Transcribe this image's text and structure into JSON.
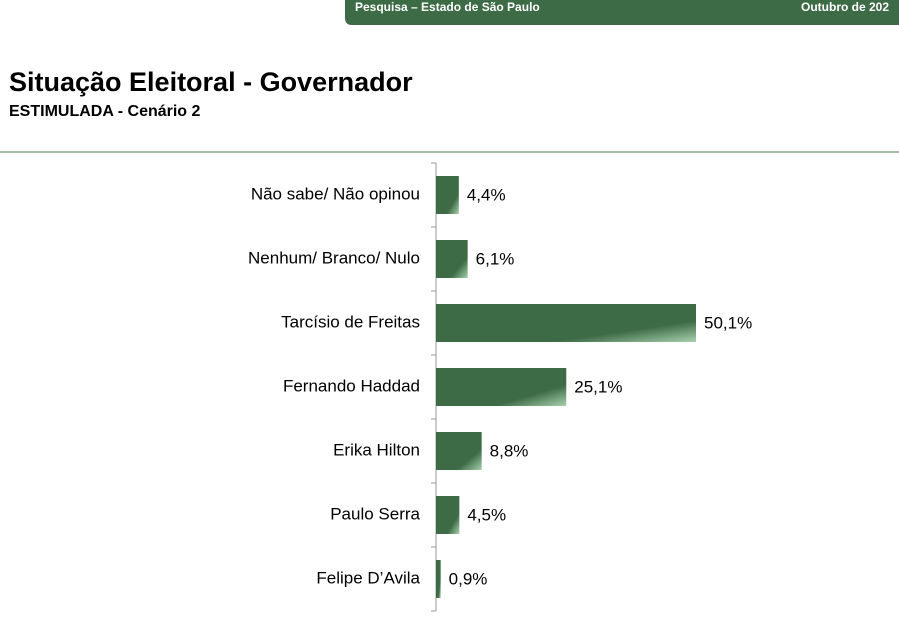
{
  "header": {
    "left": "Pesquisa – Estado de São Paulo",
    "right": "Outubro de 202"
  },
  "chart_data": {
    "type": "bar",
    "orientation": "horizontal",
    "title": "Situação Eleitoral - Governador",
    "subtitle": "ESTIMULADA - Cenário 2",
    "categories": [
      "Não sabe/ Não opinou",
      "Nenhum/ Branco/ Nulo",
      "Tarcísio de Freitas",
      "Fernando Haddad",
      "Erika Hilton",
      "Paulo Serra",
      "Felipe D’Avila"
    ],
    "values": [
      4.4,
      6.1,
      50.1,
      25.1,
      8.8,
      4.5,
      0.9
    ],
    "value_labels": [
      "4,4%",
      "6,1%",
      "50,1%",
      "25,1%",
      "8,8%",
      "4,5%",
      "0,9%"
    ],
    "color": "#3d6b45"
  }
}
